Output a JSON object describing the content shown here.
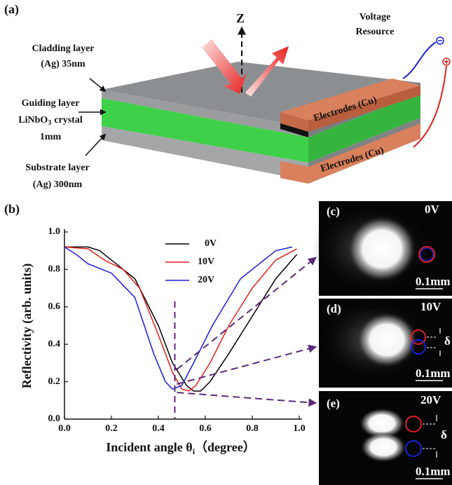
{
  "panel_a": {
    "label": "(a)",
    "z_axis": "Z",
    "voltage": [
      "Voltage",
      "Resource"
    ],
    "cladding": [
      "Cladding layer",
      "(Ag) 35nm"
    ],
    "guiding": {
      "line1": "Guiding layer",
      "line2": "LiNbO",
      "line2_sub": "3",
      "line2_rest": "crystal",
      "line3": "1mm"
    },
    "substrate": [
      "Substrate layer",
      "(Ag) 300nm"
    ],
    "electrodes": [
      "Electrodes (Cu)",
      "Electrodes (Cu)"
    ]
  },
  "chart_data": {
    "type": "line",
    "label": "(b)",
    "ylabel": "Reflectivity (arb. units)",
    "xlabel": "Incident angle θ",
    "xlabel_sub": "i",
    "xlabel_unit": "（degree）",
    "xlim": [
      0,
      1
    ],
    "ylim": [
      0,
      1
    ],
    "xticks": [
      {
        "value": 0,
        "label": "0.0"
      },
      0.2,
      0.4,
      0.6,
      0.8,
      {
        "value": 1,
        "label": "1.0"
      }
    ],
    "yticks": [
      {
        "value": 0,
        "label": "0.0"
      },
      0.2,
      0.4,
      0.6,
      0.8,
      {
        "value": 1,
        "label": "1.0"
      }
    ],
    "marker_x": 0.47,
    "series": [
      {
        "name": "0V",
        "color": "#000000",
        "x": [
          0,
          0.1,
          0.15,
          0.2,
          0.3,
          0.4,
          0.46,
          0.52,
          0.55,
          0.58,
          0.62,
          0.7,
          0.8,
          0.9,
          0.99
        ],
        "values": [
          0.92,
          0.92,
          0.9,
          0.85,
          0.75,
          0.5,
          0.3,
          0.18,
          0.15,
          0.15,
          0.2,
          0.35,
          0.55,
          0.75,
          0.88
        ]
      },
      {
        "name": "10V",
        "color": "#e0201b",
        "x": [
          0,
          0.1,
          0.17,
          0.25,
          0.32,
          0.4,
          0.46,
          0.5,
          0.53,
          0.56,
          0.62,
          0.7,
          0.8,
          0.9,
          0.99
        ],
        "values": [
          0.92,
          0.91,
          0.85,
          0.8,
          0.7,
          0.45,
          0.25,
          0.16,
          0.15,
          0.18,
          0.3,
          0.5,
          0.7,
          0.85,
          0.91
        ]
      },
      {
        "name": "20V",
        "color": "#1c1ce0",
        "x": [
          0,
          0.05,
          0.1,
          0.2,
          0.3,
          0.38,
          0.43,
          0.46,
          0.5,
          0.55,
          0.63,
          0.75,
          0.9,
          0.97
        ],
        "values": [
          0.92,
          0.88,
          0.83,
          0.78,
          0.65,
          0.35,
          0.2,
          0.16,
          0.18,
          0.3,
          0.5,
          0.75,
          0.9,
          0.92
        ]
      }
    ]
  },
  "images": [
    {
      "label": "(c)",
      "voltage": "0V",
      "scale": "0.1mm"
    },
    {
      "label": "(d)",
      "voltage": "10V",
      "shift": "δ",
      "scale": "0.1mm"
    },
    {
      "label": "(e)",
      "voltage": "20V",
      "shift": "δ",
      "scale": "0.1mm"
    }
  ]
}
